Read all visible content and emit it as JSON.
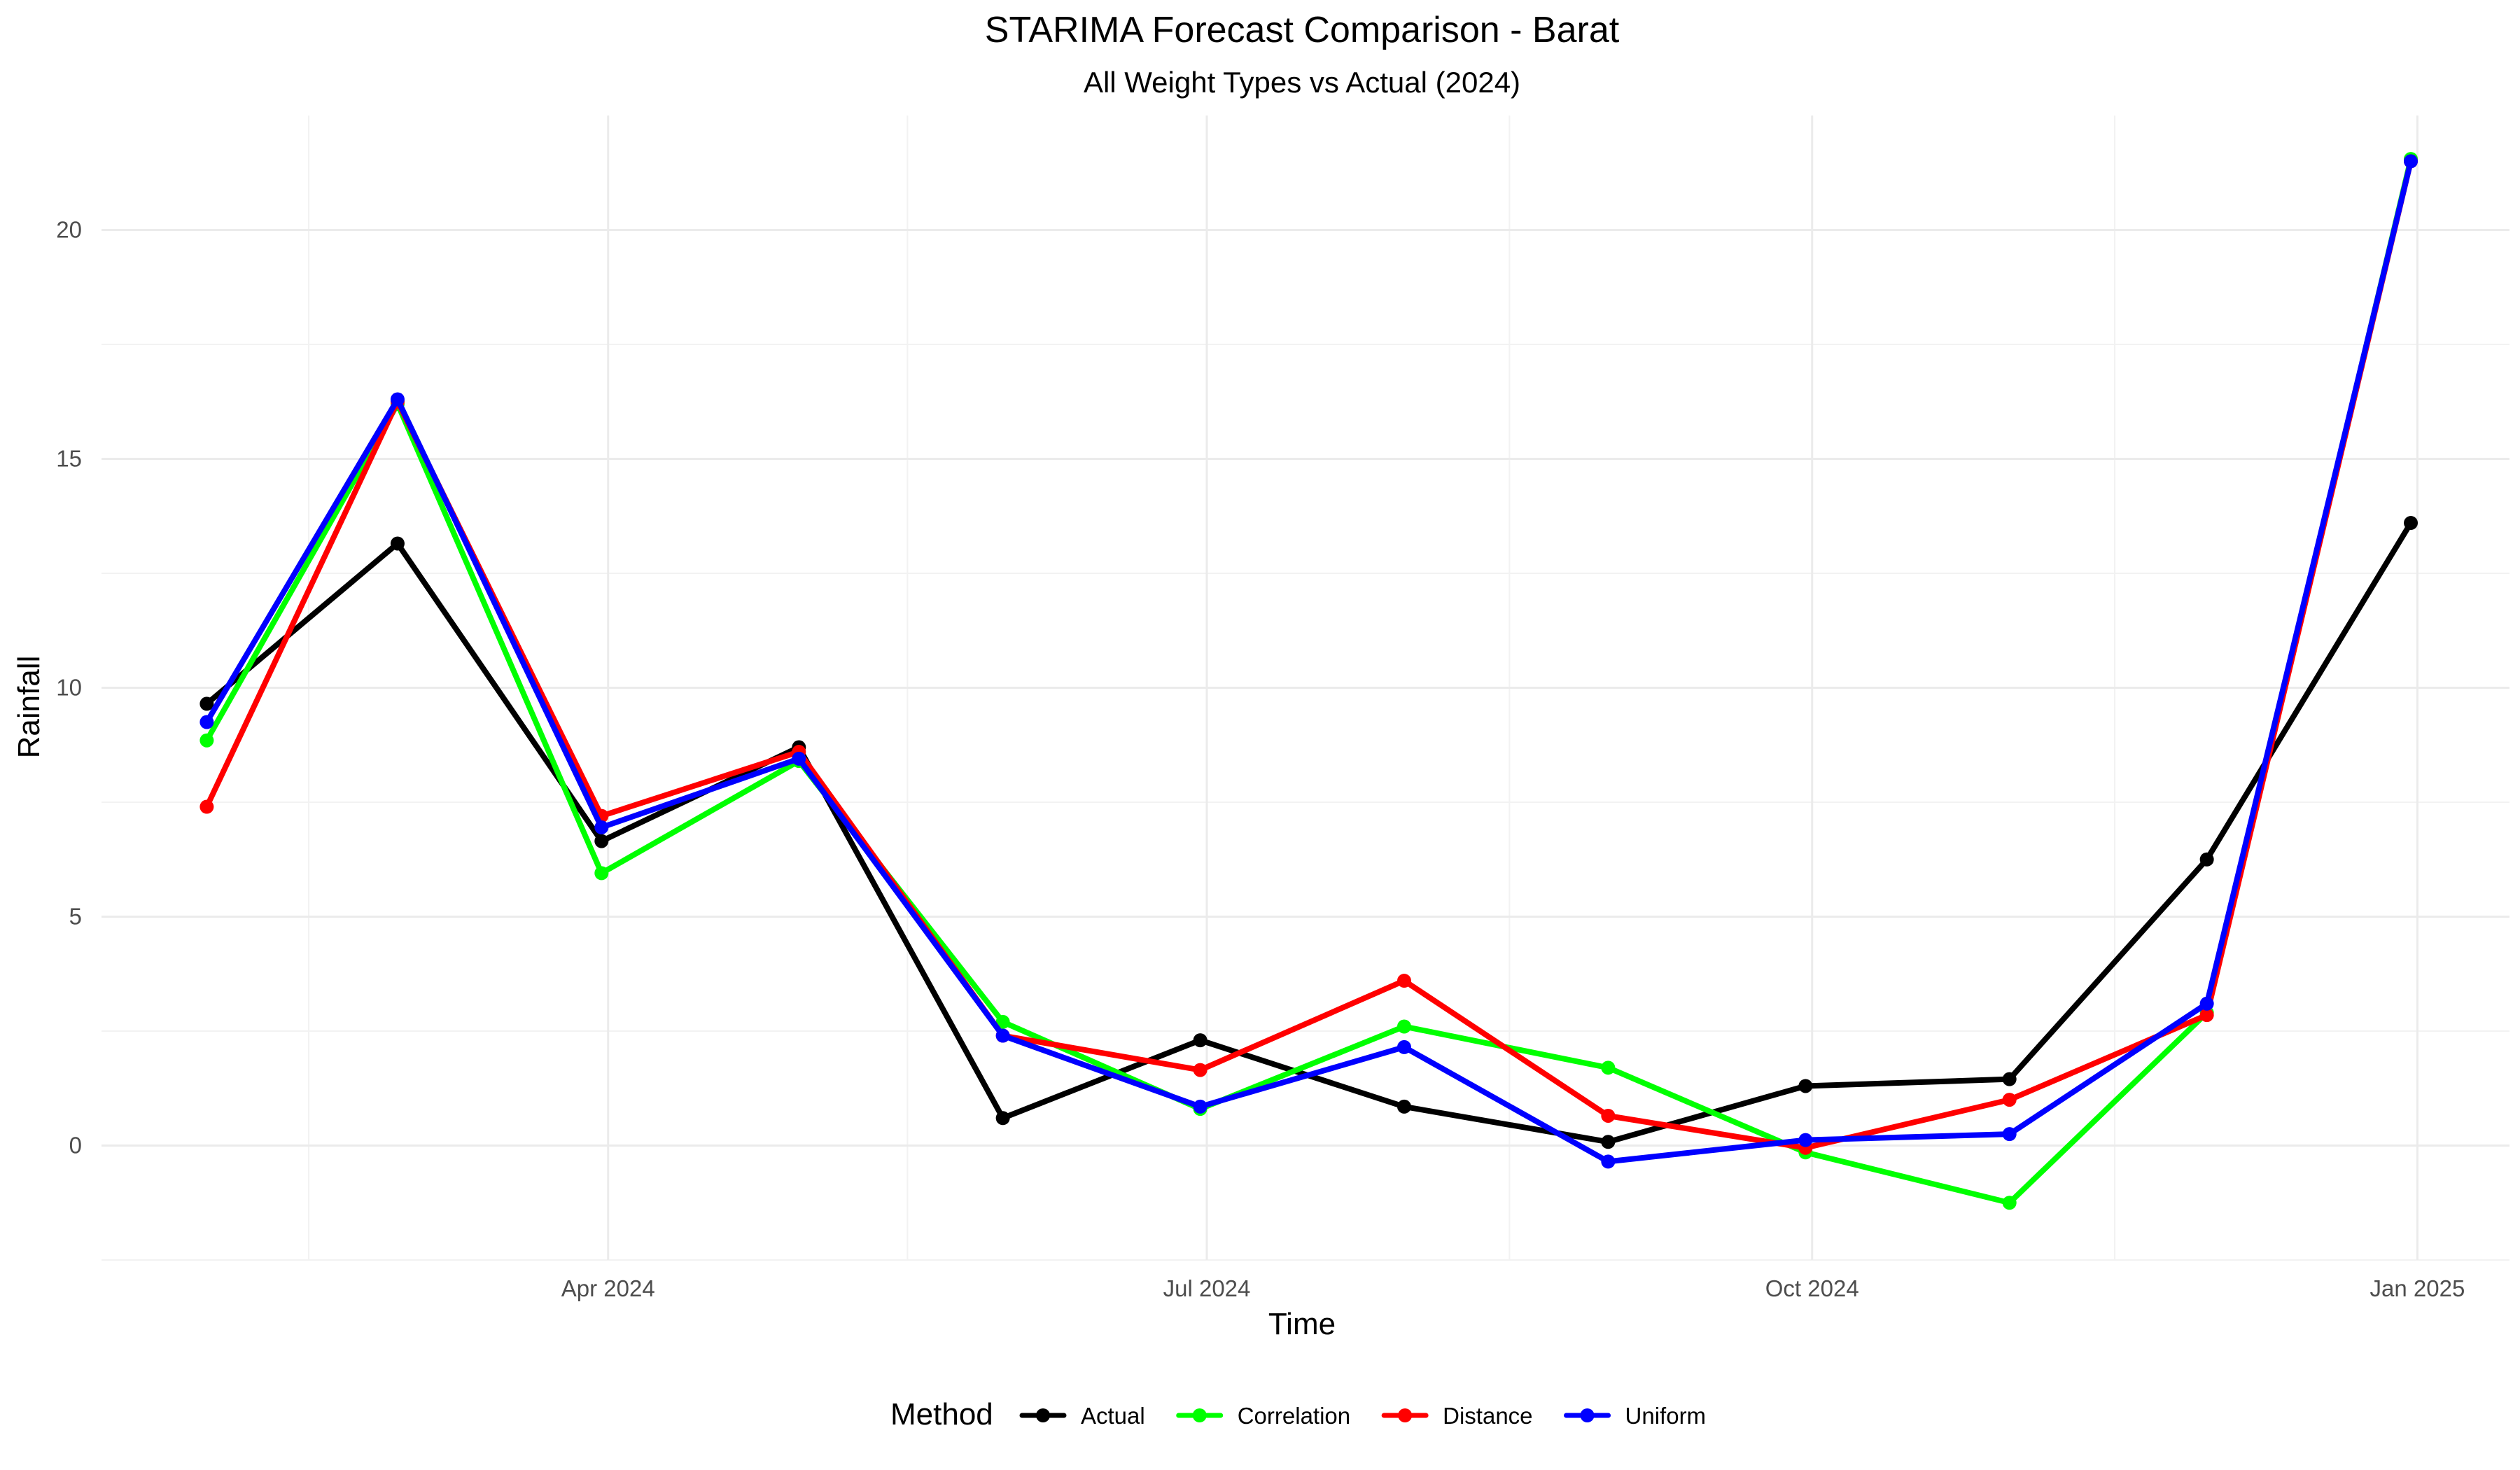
{
  "chart_data": {
    "type": "line",
    "title": "STARIMA Forecast Comparison - Barat",
    "subtitle": "All Weight Types vs Actual (2024)",
    "xlabel": "Time",
    "ylabel": "Rainfall",
    "x": [
      "2024-01-31",
      "2024-02-29",
      "2024-03-31",
      "2024-04-30",
      "2024-05-31",
      "2024-06-30",
      "2024-07-31",
      "2024-08-31",
      "2024-09-30",
      "2024-10-31",
      "2024-11-30",
      "2024-12-31"
    ],
    "xlim": [
      "2024-01-15",
      "2025-01-15"
    ],
    "ylim": [
      -2.5,
      22.5
    ],
    "x_ticks": [
      {
        "date": "2024-04-01",
        "label": "Apr 2024"
      },
      {
        "date": "2024-07-01",
        "label": "Jul 2024"
      },
      {
        "date": "2024-10-01",
        "label": "Oct 2024"
      },
      {
        "date": "2025-01-01",
        "label": "Jan 2025"
      }
    ],
    "y_ticks": [
      0,
      5,
      10,
      15,
      20
    ],
    "grid": true,
    "legend_title": "Method",
    "legend_position": "bottom",
    "series": [
      {
        "name": "Actual",
        "color": "#000000",
        "values": [
          9.65,
          13.15,
          6.65,
          8.7,
          0.6,
          2.3,
          0.85,
          0.08,
          1.3,
          1.45,
          6.25,
          13.6
        ]
      },
      {
        "name": "Correlation",
        "color": "#00ff00",
        "values": [
          8.85,
          16.2,
          5.95,
          8.4,
          2.7,
          0.8,
          2.6,
          1.7,
          -0.15,
          -1.25,
          2.9,
          21.55
        ]
      },
      {
        "name": "Distance",
        "color": "#ff0000",
        "values": [
          7.4,
          16.25,
          7.2,
          8.6,
          2.4,
          1.65,
          3.6,
          0.65,
          -0.05,
          1.0,
          2.85,
          21.5
        ]
      },
      {
        "name": "Uniform",
        "color": "#0000ff",
        "values": [
          9.25,
          16.3,
          6.95,
          8.45,
          2.4,
          0.85,
          2.15,
          -0.35,
          0.12,
          0.25,
          3.1,
          21.5
        ]
      }
    ]
  }
}
